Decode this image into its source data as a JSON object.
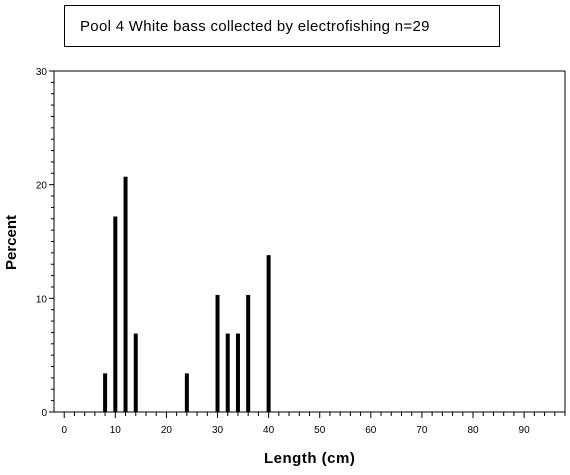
{
  "chart_data": {
    "type": "bar",
    "title": "Pool 4 White bass collected by electrofishing n=29",
    "xlabel": "Length (cm)",
    "ylabel": "Percent",
    "xlim": [
      -2,
      98
    ],
    "ylim": [
      0,
      30
    ],
    "x_ticks": [
      0,
      10,
      20,
      30,
      40,
      50,
      60,
      70,
      80,
      90
    ],
    "y_ticks": [
      0,
      10,
      20,
      30
    ],
    "grid": false,
    "series": [
      {
        "x": [
          8,
          10,
          12,
          14,
          24,
          30,
          32,
          34,
          36,
          40
        ],
        "values": [
          3.4,
          17.2,
          20.7,
          6.9,
          3.4,
          10.3,
          6.9,
          6.9,
          10.3,
          13.8
        ]
      }
    ]
  },
  "colors": {
    "bar": "#000000",
    "axis": "#000000",
    "background": "#ffffff"
  }
}
